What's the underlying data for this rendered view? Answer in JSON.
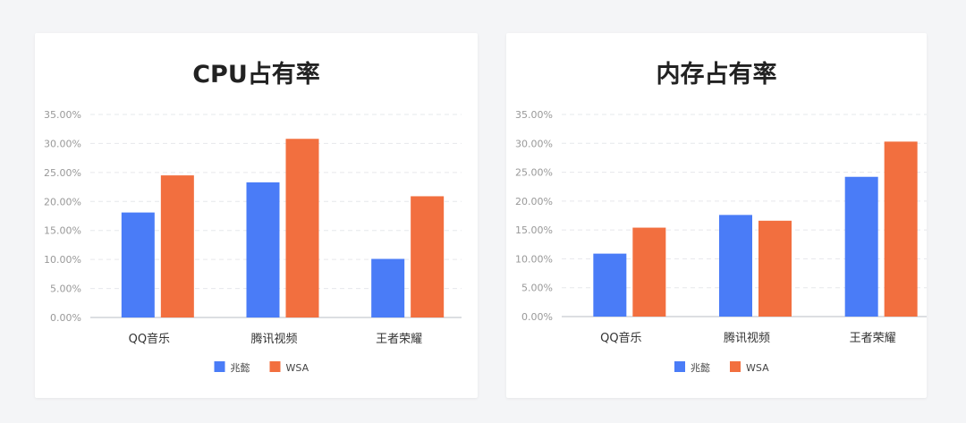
{
  "colors": {
    "series_0": "#4a7cf7",
    "series_1": "#f26f3f",
    "grid": "#e6e8eb",
    "axis": "#d0d3d8",
    "tick_text": "#999999",
    "cat_text": "#333333"
  },
  "chart_data": [
    {
      "type": "bar",
      "title": "CPU占有率",
      "categories": [
        "QQ音乐",
        "腾讯视频",
        "王者荣耀"
      ],
      "series": [
        {
          "name": "兆懿",
          "values": [
            18.1,
            23.3,
            10.1
          ]
        },
        {
          "name": "WSA",
          "values": [
            24.5,
            30.8,
            20.9
          ]
        }
      ],
      "ylim": [
        0,
        35
      ],
      "yticks": [
        "0.00%",
        "5.00%",
        "10.00%",
        "15.00%",
        "20.00%",
        "25.00%",
        "30.00%",
        "35.00%"
      ],
      "grid": true,
      "legend": "bottom-center"
    },
    {
      "type": "bar",
      "title": "内存占有率",
      "categories": [
        "QQ音乐",
        "腾讯视频",
        "王者荣耀"
      ],
      "series": [
        {
          "name": "兆懿",
          "values": [
            10.9,
            17.6,
            24.2
          ]
        },
        {
          "name": "WSA",
          "values": [
            15.4,
            16.6,
            30.3
          ]
        }
      ],
      "ylim": [
        0,
        35
      ],
      "yticks": [
        "0.00%",
        "5.00%",
        "10.00%",
        "15.00%",
        "20.00%",
        "25.00%",
        "30.00%",
        "35.00%"
      ],
      "grid": true,
      "legend": "bottom-center"
    }
  ]
}
